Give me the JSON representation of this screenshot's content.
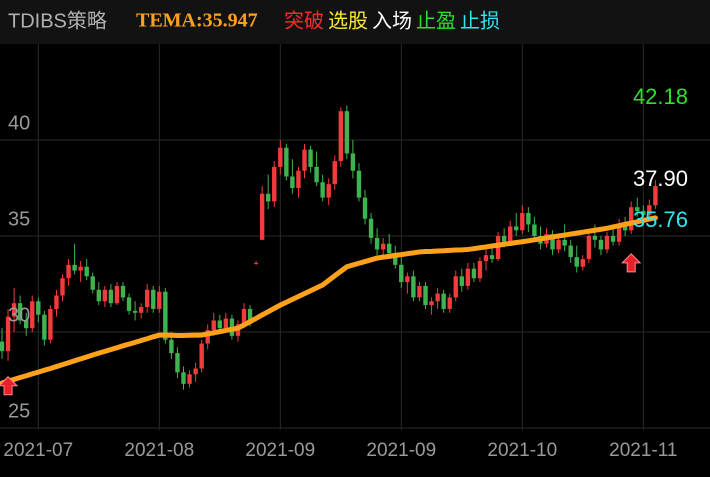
{
  "chart_data": {
    "type": "candlestick",
    "legend": [
      {
        "text": "TDIBS策略",
        "color": "#b0b0b0",
        "serif": false
      },
      {
        "text": "TEMA:35.947",
        "color": "#ffa21a",
        "serif": true
      },
      {
        "text": "突破",
        "color": "#ff2a2a",
        "serif": false
      },
      {
        "text": "选股",
        "color": "#ffe930",
        "serif": false
      },
      {
        "text": "入场",
        "color": "#ffffff",
        "serif": false
      },
      {
        "text": "止盈",
        "color": "#2ee02e",
        "serif": false
      },
      {
        "text": "止损",
        "color": "#30e6f0",
        "serif": false
      }
    ],
    "categories": [
      null,
      null,
      null,
      null,
      null,
      null,
      "2021-07",
      null,
      null,
      null,
      null,
      null,
      null,
      null,
      null,
      null,
      null,
      null,
      null,
      null,
      null,
      null,
      null,
      null,
      null,
      null,
      "2021-08",
      null,
      null,
      null,
      null,
      null,
      null,
      null,
      null,
      null,
      null,
      null,
      null,
      null,
      null,
      null,
      null,
      null,
      null,
      null,
      "2021-09",
      null,
      null,
      null,
      null,
      null,
      null,
      null,
      null,
      null,
      null,
      null,
      null,
      null,
      null,
      null,
      null,
      null,
      null,
      null,
      "2021-09",
      null,
      null,
      null,
      null,
      null,
      null,
      null,
      null,
      null,
      null,
      null,
      null,
      null,
      null,
      null,
      null,
      null,
      null,
      null,
      "2021-10",
      null,
      null,
      null,
      null,
      null,
      null,
      null,
      null,
      null,
      null,
      null,
      null,
      null,
      null,
      null,
      null,
      null,
      null,
      null,
      "2021-11",
      null,
      null
    ],
    "ohlc": [
      [
        29.5,
        30.2,
        28.6,
        29.0
      ],
      [
        29.0,
        31.2,
        28.5,
        30.8
      ],
      [
        30.8,
        32.3,
        30.0,
        31.5
      ],
      [
        31.5,
        31.9,
        30.4,
        30.6
      ],
      [
        30.6,
        31.0,
        29.8,
        30.2
      ],
      [
        30.2,
        31.9,
        30.0,
        31.6
      ],
      [
        31.6,
        31.8,
        30.5,
        30.9
      ],
      [
        30.9,
        31.1,
        29.3,
        29.6
      ],
      [
        29.6,
        31.4,
        29.4,
        31.2
      ],
      [
        31.2,
        32.2,
        30.8,
        31.9
      ],
      [
        31.9,
        33.0,
        31.6,
        32.8
      ],
      [
        32.8,
        33.8,
        32.4,
        33.5
      ],
      [
        33.5,
        34.6,
        33.0,
        33.2
      ],
      [
        33.2,
        33.7,
        32.6,
        33.4
      ],
      [
        33.4,
        33.8,
        32.7,
        32.9
      ],
      [
        32.9,
        33.1,
        32.0,
        32.2
      ],
      [
        32.2,
        32.6,
        31.4,
        31.6
      ],
      [
        31.6,
        32.4,
        31.3,
        32.2
      ],
      [
        32.2,
        32.5,
        31.3,
        31.5
      ],
      [
        31.5,
        32.6,
        31.4,
        32.4
      ],
      [
        32.4,
        32.6,
        31.6,
        31.8
      ],
      [
        31.8,
        32.0,
        30.9,
        31.1
      ],
      [
        31.1,
        31.6,
        30.6,
        31.0
      ],
      [
        31.0,
        31.5,
        30.7,
        31.3
      ],
      [
        31.3,
        32.5,
        31.0,
        32.2
      ],
      [
        32.2,
        32.4,
        31.0,
        31.2
      ],
      [
        31.2,
        32.4,
        31.0,
        32.1
      ],
      [
        32.1,
        32.3,
        29.4,
        29.6
      ],
      [
        29.6,
        30.0,
        28.6,
        28.9
      ],
      [
        28.9,
        29.2,
        27.6,
        27.9
      ],
      [
        27.9,
        28.2,
        27.0,
        27.3
      ],
      [
        27.3,
        28.0,
        27.1,
        27.8
      ],
      [
        27.8,
        28.4,
        27.4,
        28.1
      ],
      [
        28.1,
        29.6,
        27.9,
        29.4
      ],
      [
        29.4,
        30.4,
        29.1,
        30.1
      ],
      [
        30.1,
        31.0,
        29.8,
        30.6
      ],
      [
        30.6,
        30.9,
        29.9,
        30.2
      ],
      [
        30.2,
        31.0,
        30.0,
        30.7
      ],
      [
        30.7,
        30.9,
        29.6,
        29.8
      ],
      [
        29.8,
        30.6,
        29.5,
        30.4
      ],
      [
        30.4,
        31.5,
        30.2,
        31.2
      ],
      [
        31.2,
        31.4,
        30.3,
        30.6
      ],
      [
        33.6,
        33.7,
        33.5,
        33.6
      ],
      [
        34.8,
        37.6,
        34.8,
        37.2
      ],
      [
        37.2,
        38.2,
        36.4,
        36.8
      ],
      [
        36.8,
        38.9,
        36.5,
        38.6
      ],
      [
        38.6,
        40.0,
        38.2,
        39.6
      ],
      [
        39.6,
        39.8,
        37.9,
        38.1
      ],
      [
        38.1,
        39.0,
        37.2,
        37.5
      ],
      [
        37.5,
        38.6,
        37.0,
        38.4
      ],
      [
        38.4,
        39.8,
        38.0,
        39.5
      ],
      [
        39.5,
        39.7,
        38.3,
        38.6
      ],
      [
        38.6,
        39.4,
        37.6,
        37.8
      ],
      [
        37.8,
        38.2,
        36.8,
        37.0
      ],
      [
        37.0,
        38.0,
        36.6,
        37.7
      ],
      [
        37.7,
        39.2,
        37.4,
        38.9
      ],
      [
        38.9,
        41.7,
        38.6,
        41.5
      ],
      [
        41.5,
        41.8,
        39.0,
        39.3
      ],
      [
        39.3,
        40.0,
        38.0,
        38.4
      ],
      [
        38.4,
        38.8,
        36.8,
        37.0
      ],
      [
        37.0,
        37.4,
        35.6,
        35.9
      ],
      [
        35.9,
        36.2,
        34.6,
        34.9
      ],
      [
        34.9,
        35.4,
        34.0,
        34.3
      ],
      [
        34.3,
        34.9,
        33.8,
        34.6
      ],
      [
        34.6,
        35.1,
        33.9,
        34.1
      ],
      [
        34.1,
        34.5,
        33.3,
        33.5
      ],
      [
        33.5,
        33.9,
        32.3,
        32.6
      ],
      [
        32.6,
        33.1,
        32.0,
        32.9
      ],
      [
        32.9,
        33.2,
        31.6,
        31.8
      ],
      [
        31.8,
        32.6,
        31.6,
        32.4
      ],
      [
        32.4,
        32.6,
        31.2,
        31.4
      ],
      [
        31.4,
        31.8,
        30.9,
        31.6
      ],
      [
        31.6,
        32.3,
        31.2,
        32.0
      ],
      [
        32.0,
        32.2,
        31.0,
        31.2
      ],
      [
        31.2,
        32.0,
        31.0,
        31.8
      ],
      [
        31.8,
        33.2,
        31.6,
        32.9
      ],
      [
        32.9,
        33.3,
        32.1,
        32.4
      ],
      [
        32.4,
        33.6,
        32.2,
        33.3
      ],
      [
        33.3,
        33.6,
        32.6,
        32.8
      ],
      [
        32.8,
        33.9,
        32.6,
        33.7
      ],
      [
        33.7,
        34.3,
        33.2,
        34.0
      ],
      [
        34.0,
        34.5,
        33.6,
        33.8
      ],
      [
        33.8,
        35.2,
        33.7,
        35.0
      ],
      [
        35.0,
        35.4,
        34.4,
        34.7
      ],
      [
        34.7,
        35.8,
        34.5,
        35.5
      ],
      [
        35.5,
        36.2,
        35.0,
        35.3
      ],
      [
        35.3,
        36.6,
        35.1,
        36.2
      ],
      [
        36.2,
        36.5,
        35.2,
        35.6
      ],
      [
        35.6,
        36.0,
        34.8,
        35.0
      ],
      [
        35.0,
        35.5,
        34.3,
        34.6
      ],
      [
        34.6,
        35.4,
        34.4,
        35.1
      ],
      [
        35.1,
        35.3,
        34.0,
        34.3
      ],
      [
        34.3,
        35.0,
        34.1,
        34.8
      ],
      [
        34.8,
        35.6,
        34.2,
        34.5
      ],
      [
        34.5,
        34.8,
        33.6,
        33.9
      ],
      [
        33.9,
        34.5,
        33.1,
        33.4
      ],
      [
        33.4,
        34.0,
        33.2,
        33.8
      ],
      [
        33.8,
        35.3,
        33.6,
        35.0
      ],
      [
        35.0,
        35.6,
        34.4,
        34.8
      ],
      [
        34.8,
        35.0,
        34.0,
        34.3
      ],
      [
        34.3,
        35.2,
        34.1,
        35.0
      ],
      [
        35.0,
        35.4,
        34.5,
        34.7
      ],
      [
        34.7,
        35.9,
        34.5,
        35.6
      ],
      [
        35.6,
        36.0,
        35.0,
        35.3
      ],
      [
        35.3,
        36.8,
        35.1,
        36.5
      ],
      [
        36.5,
        37.0,
        36.0,
        36.3
      ],
      [
        36.3,
        36.6,
        35.8,
        36.1
      ],
      [
        36.1,
        36.9,
        35.9,
        36.6
      ],
      [
        36.6,
        37.9,
        36.4,
        37.6
      ]
    ],
    "up_color": "#f23b3b",
    "down_color": "#3fb34f",
    "tema": {
      "color": "#ffa21a",
      "values": [
        27.34,
        27.44,
        27.53,
        27.63,
        27.72,
        27.82,
        27.91,
        28.01,
        28.1,
        28.2,
        28.3,
        28.4,
        28.5,
        28.6,
        28.7,
        28.8,
        28.9,
        28.99,
        29.09,
        29.18,
        29.28,
        29.37,
        29.46,
        29.56,
        29.65,
        29.75,
        29.84,
        29.84,
        29.83,
        29.82,
        29.82,
        29.83,
        29.84,
        29.84,
        29.9,
        29.96,
        30.02,
        30.08,
        30.14,
        30.2,
        30.37,
        30.54,
        30.71,
        30.89,
        31.06,
        31.23,
        31.4,
        31.55,
        31.7,
        31.85,
        32.0,
        32.15,
        32.3,
        32.45,
        32.69,
        32.93,
        33.16,
        33.4,
        33.49,
        33.58,
        33.67,
        33.76,
        33.85,
        33.9,
        33.94,
        33.99,
        34.03,
        34.08,
        34.12,
        34.17,
        34.19,
        34.2,
        34.22,
        34.23,
        34.25,
        34.27,
        34.28,
        34.3,
        34.34,
        34.39,
        34.43,
        34.48,
        34.52,
        34.57,
        34.61,
        34.66,
        34.7,
        34.75,
        34.8,
        34.85,
        34.9,
        34.95,
        35.0,
        35.05,
        35.1,
        35.15,
        35.2,
        35.25,
        35.3,
        35.35,
        35.4,
        35.47,
        35.54,
        35.61,
        35.67,
        35.74,
        35.81,
        35.88,
        35.947
      ]
    },
    "levels": {
      "values": [
        42.18,
        37.9,
        35.76
      ],
      "value_labels": [
        "42.18",
        "37.90",
        "35.76"
      ],
      "colors": [
        "#2ee02e",
        "#ffffff",
        "#30e6f0"
      ]
    },
    "signals": {
      "color": "#e8202a",
      "index": [
        1,
        104
      ],
      "values": [
        27.2,
        33.6
      ]
    },
    "ylim": [
      23.75,
      45
    ],
    "yticks": [
      25,
      30,
      35,
      40
    ],
    "grid": true
  }
}
